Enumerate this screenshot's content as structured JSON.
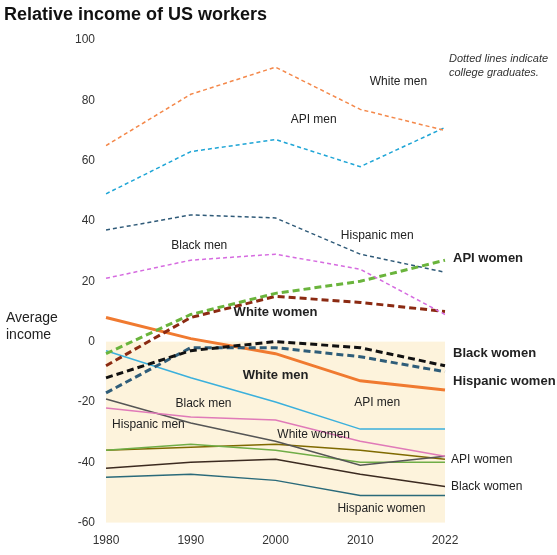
{
  "chart_data": {
    "type": "line",
    "title": "Relative income of US workers",
    "y_label": "Average income",
    "note": [
      "Dotted lines indicate",
      "college graduates."
    ],
    "categories": [
      "1980",
      "1990",
      "2000",
      "2010",
      "2022"
    ],
    "ylim": [
      -60,
      100
    ],
    "yticks": [
      -60,
      -40,
      -20,
      0,
      20,
      40,
      60,
      80,
      100
    ],
    "grid": false,
    "band": {
      "from": -60,
      "to": 0,
      "color": "#fdf3dc"
    },
    "series": [
      {
        "name": "White men",
        "color": "#f4884a",
        "line_style": "dashed",
        "values": [
          65,
          82,
          91,
          77,
          70
        ]
      },
      {
        "name": "API men",
        "color": "#1ea5d6",
        "line_style": "dashed",
        "values": [
          49,
          63,
          67,
          58,
          71
        ]
      },
      {
        "name": "Hispanic men",
        "color": "#2f5a78",
        "line_style": "dashed",
        "values": [
          37,
          42,
          41,
          29,
          23
        ]
      },
      {
        "name": "Black men",
        "color": "#d66be0",
        "line_style": "dashed",
        "values": [
          21,
          27,
          29,
          24,
          9
        ]
      },
      {
        "name": "API women",
        "color": "#6ab43c",
        "line_style": "dashed",
        "values": [
          -4,
          9,
          16,
          20,
          27
        ]
      },
      {
        "name": "White women",
        "color": "#8b2a12",
        "line_style": "dashed",
        "values": [
          -8,
          8,
          15,
          13,
          10
        ]
      },
      {
        "name": "Black women",
        "color": "#111111",
        "line_style": "dashed",
        "values": [
          -12,
          -3,
          0,
          -2,
          -8
        ]
      },
      {
        "name": "Hispanic women",
        "color": "#2f5d79",
        "line_style": "dashed",
        "values": [
          -17,
          -2,
          -2,
          -5,
          -10
        ]
      },
      {
        "name": "White men",
        "color": "#f07a30",
        "line_style": "solid",
        "values": [
          8,
          1,
          -4,
          -13,
          -16
        ]
      },
      {
        "name": "API men",
        "color": "#3bb0dc",
        "line_style": "solid",
        "values": [
          -3,
          -12,
          -20,
          -29,
          -29
        ]
      },
      {
        "name": "Black men",
        "color": "#e07ab8",
        "line_style": "solid",
        "values": [
          -22,
          -25,
          -26,
          -33,
          -38
        ]
      },
      {
        "name": "Hispanic men",
        "color": "#555555",
        "line_style": "solid",
        "values": [
          -19,
          -27,
          -33,
          -41,
          -38
        ]
      },
      {
        "name": "White women",
        "color": "#70ad47",
        "line_style": "solid",
        "values": [
          -36,
          -34,
          -36,
          -40,
          -40
        ]
      },
      {
        "name": "API women",
        "color": "#7f6a00",
        "line_style": "solid",
        "values": [
          -36,
          -35,
          -34,
          -36,
          -39
        ]
      },
      {
        "name": "Black women",
        "color": "#3b2a20",
        "line_style": "solid",
        "values": [
          -42,
          -40,
          -39,
          -44,
          -48
        ]
      },
      {
        "name": "Hispanic women",
        "color": "#2a6a7a",
        "line_style": "solid",
        "values": [
          -45,
          -44,
          -46,
          -51,
          -51
        ]
      }
    ]
  }
}
